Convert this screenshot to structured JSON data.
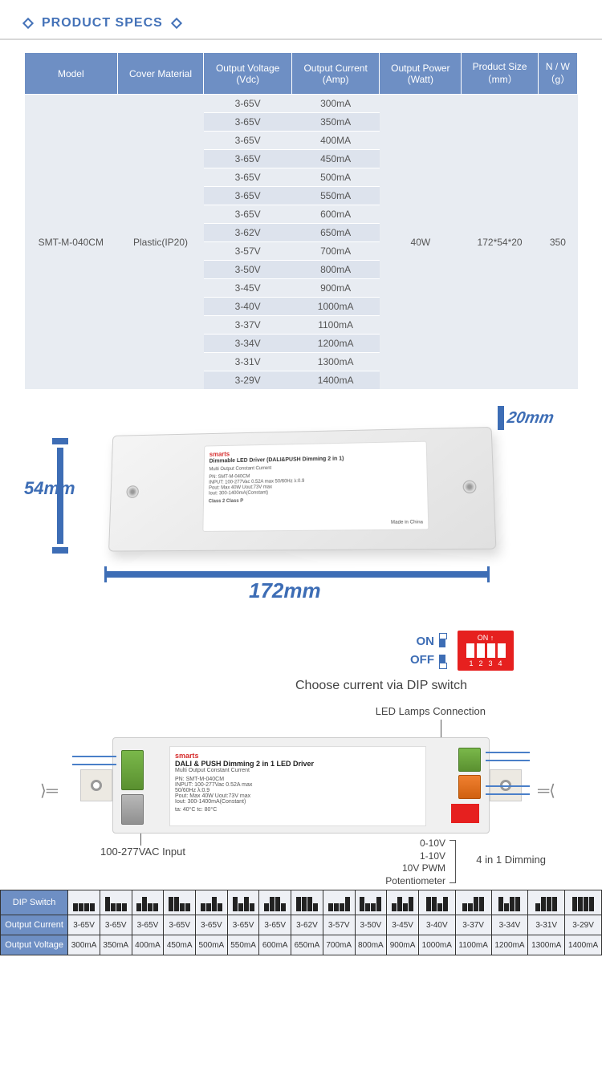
{
  "title": "PRODUCT SPECS",
  "specTable": {
    "headers": [
      "Model",
      "Cover Material",
      "Output Voltage\n(Vdc)",
      "Output Current\n(Amp)",
      "Output Power\n(Watt)",
      "Product Size\n（mm）",
      "N / W\n（g）"
    ],
    "model": "SMT-M-040CM",
    "cover": "Plastic(IP20)",
    "power": "40W",
    "size": "172*54*20",
    "weight": "350",
    "rows": [
      {
        "v": "3-65V",
        "c": "300mA"
      },
      {
        "v": "3-65V",
        "c": "350mA"
      },
      {
        "v": "3-65V",
        "c": "400MA"
      },
      {
        "v": "3-65V",
        "c": "450mA"
      },
      {
        "v": "3-65V",
        "c": "500mA"
      },
      {
        "v": "3-65V",
        "c": "550mA"
      },
      {
        "v": "3-65V",
        "c": "600mA"
      },
      {
        "v": "3-62V",
        "c": "650mA"
      },
      {
        "v": "3-57V",
        "c": "700mA"
      },
      {
        "v": "3-50V",
        "c": "800mA"
      },
      {
        "v": "3-45V",
        "c": "900mA"
      },
      {
        "v": "3-40V",
        "c": "1000mA"
      },
      {
        "v": "3-37V",
        "c": "1100mA"
      },
      {
        "v": "3-34V",
        "c": "1200mA"
      },
      {
        "v": "3-31V",
        "c": "1300mA"
      },
      {
        "v": "3-29V",
        "c": "1400mA"
      }
    ]
  },
  "dimensions": {
    "width": "172mm",
    "height": "54mm",
    "depth": "20mm"
  },
  "productLabel": {
    "brand": "smarts",
    "title": "Dimmable LED Driver  (DALI&PUSH Dimming 2 in 1)",
    "sub": "Multi Output Constant Current",
    "pn": "PN: SMT-M-040CM",
    "input": "INPUT: 100-277Vac 0.52A max 50/60Hz λ:0.9",
    "pout": "Pout: Max 40W  Uout:73V max",
    "iout": "Iout: 300-1400mA(Constant)",
    "class": "Class 2   Class P",
    "made": "Made in China"
  },
  "dip": {
    "on": "ON",
    "off": "OFF",
    "iconTop": "ON ↑",
    "nums": [
      "1",
      "2",
      "3",
      "4"
    ],
    "caption": "Choose current via DIP switch"
  },
  "wiring": {
    "ledConn": "LED Lamps Connection",
    "input": "100-277VAC Input",
    "dimLines": [
      "0-10V",
      "1-10V",
      "10V PWM",
      "Potentiometer"
    ],
    "dimLabel": "4 in 1 Dimming",
    "label": {
      "brand": "smarts",
      "title": "DALI & PUSH Dimming 2 in 1 LED Driver",
      "sub": "Multi Output Constant Current",
      "pn": "PN: SMT-M-040CM",
      "input": "INPUT: 100-277Vac 0.52A max",
      "hz": "50/60Hz λ:0.9",
      "pout": "Pout: Max 40W  Uout:73V max",
      "iout": "Iout: 300-1400mA(Constant)",
      "ta": "ta: 40°C  tc: 80°C"
    }
  },
  "bottomTable": {
    "rowLabels": [
      "DIP Switch",
      "Output Current",
      "Output Voltage"
    ],
    "cols": [
      {
        "dip": [
          0,
          0,
          0,
          0
        ],
        "oc": "3-65V",
        "ov": "300mA"
      },
      {
        "dip": [
          1,
          0,
          0,
          0
        ],
        "oc": "3-65V",
        "ov": "350mA"
      },
      {
        "dip": [
          0,
          1,
          0,
          0
        ],
        "oc": "3-65V",
        "ov": "400mA"
      },
      {
        "dip": [
          1,
          1,
          0,
          0
        ],
        "oc": "3-65V",
        "ov": "450mA"
      },
      {
        "dip": [
          0,
          0,
          1,
          0
        ],
        "oc": "3-65V",
        "ov": "500mA"
      },
      {
        "dip": [
          1,
          0,
          1,
          0
        ],
        "oc": "3-65V",
        "ov": "550mA"
      },
      {
        "dip": [
          0,
          1,
          1,
          0
        ],
        "oc": "3-65V",
        "ov": "600mA"
      },
      {
        "dip": [
          1,
          1,
          1,
          0
        ],
        "oc": "3-62V",
        "ov": "650mA"
      },
      {
        "dip": [
          0,
          0,
          0,
          1
        ],
        "oc": "3-57V",
        "ov": "700mA"
      },
      {
        "dip": [
          1,
          0,
          0,
          1
        ],
        "oc": "3-50V",
        "ov": "800mA"
      },
      {
        "dip": [
          0,
          1,
          0,
          1
        ],
        "oc": "3-45V",
        "ov": "900mA"
      },
      {
        "dip": [
          1,
          1,
          0,
          1
        ],
        "oc": "3-40V",
        "ov": "1000mA"
      },
      {
        "dip": [
          0,
          0,
          1,
          1
        ],
        "oc": "3-37V",
        "ov": "1100mA"
      },
      {
        "dip": [
          1,
          0,
          1,
          1
        ],
        "oc": "3-34V",
        "ov": "1200mA"
      },
      {
        "dip": [
          0,
          1,
          1,
          1
        ],
        "oc": "3-31V",
        "ov": "1300mA"
      },
      {
        "dip": [
          1,
          1,
          1,
          1
        ],
        "oc": "3-29V",
        "ov": "1400mA"
      }
    ]
  },
  "colors": {
    "headerBlue": "#6e8fc4",
    "accentBlue": "#4472b8",
    "dimBlue": "#3d6db5",
    "dipRed": "#e6201f",
    "rowBg": "#e8ecf2",
    "rowAlt": "#dde3ed"
  }
}
